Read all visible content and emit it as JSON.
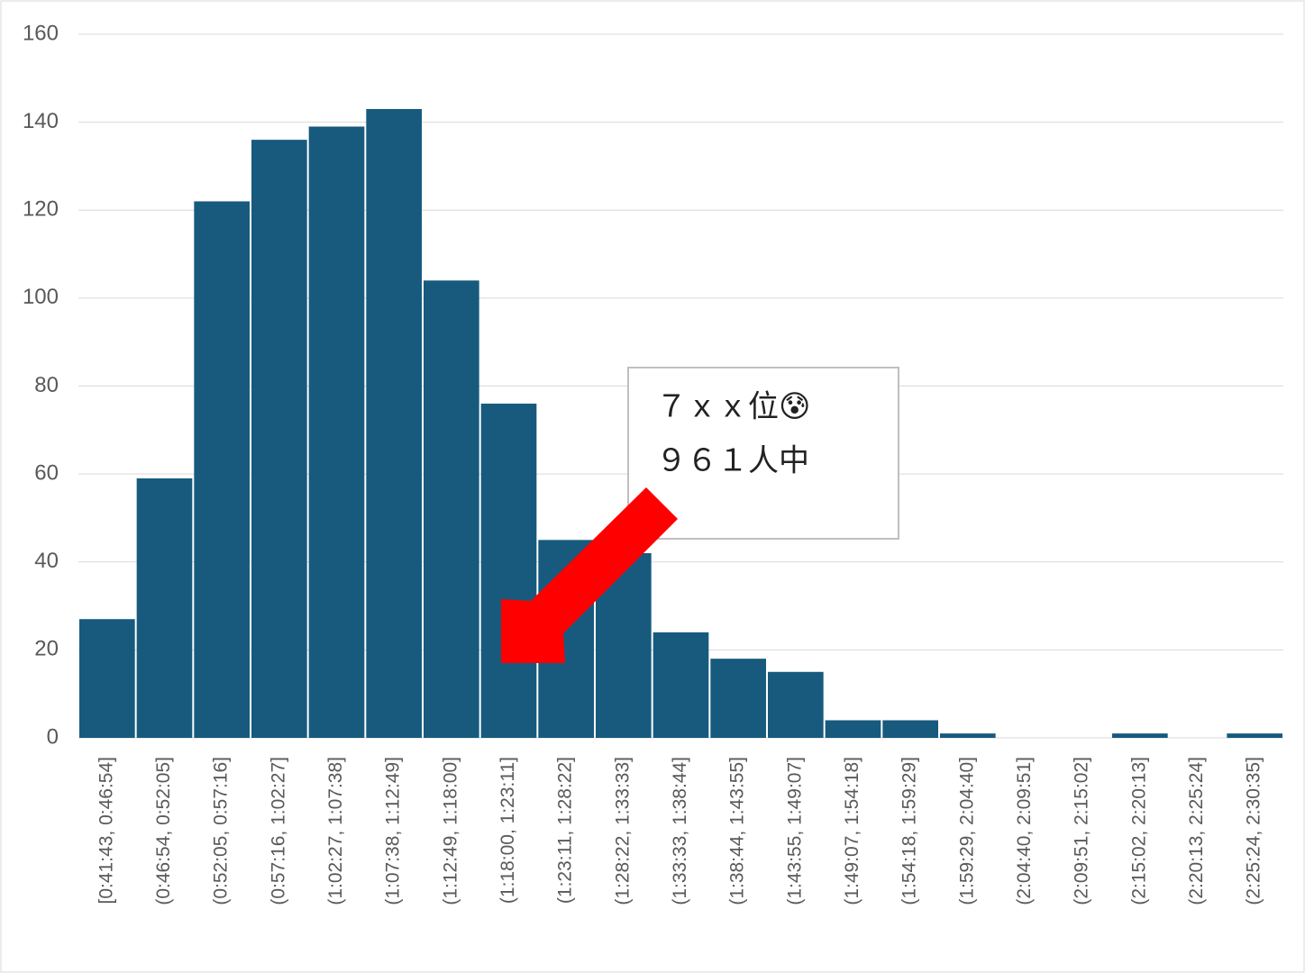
{
  "chart_data": {
    "type": "bar",
    "categories": [
      "[0:41:43, 0:46:54]",
      "(0:46:54, 0:52:05]",
      "(0:52:05, 0:57:16]",
      "(0:57:16, 1:02:27]",
      "(1:02:27, 1:07:38]",
      "(1:07:38, 1:12:49]",
      "(1:12:49, 1:18:00]",
      "(1:18:00, 1:23:11]",
      "(1:23:11, 1:28:22]",
      "(1:28:22, 1:33:33]",
      "(1:33:33, 1:38:44]",
      "(1:38:44, 1:43:55]",
      "(1:43:55, 1:49:07]",
      "(1:49:07, 1:54:18]",
      "(1:54:18, 1:59:29]",
      "(1:59:29, 2:04:40]",
      "(2:04:40, 2:09:51]",
      "(2:09:51, 2:15:02]",
      "(2:15:02, 2:20:13]",
      "(2:20:13, 2:25:24]",
      "(2:25:24, 2:30:35]"
    ],
    "values": [
      27,
      59,
      122,
      136,
      139,
      143,
      104,
      76,
      45,
      42,
      24,
      18,
      15,
      4,
      4,
      1,
      0,
      0,
      1,
      0,
      1
    ],
    "color": "#175a7e",
    "ylim": [
      0,
      160
    ],
    "yticks": [
      0,
      20,
      40,
      60,
      80,
      100,
      120,
      140,
      160
    ],
    "grid": true,
    "annotation": [
      "７ｘｘ位😰",
      "９６１人中"
    ]
  }
}
